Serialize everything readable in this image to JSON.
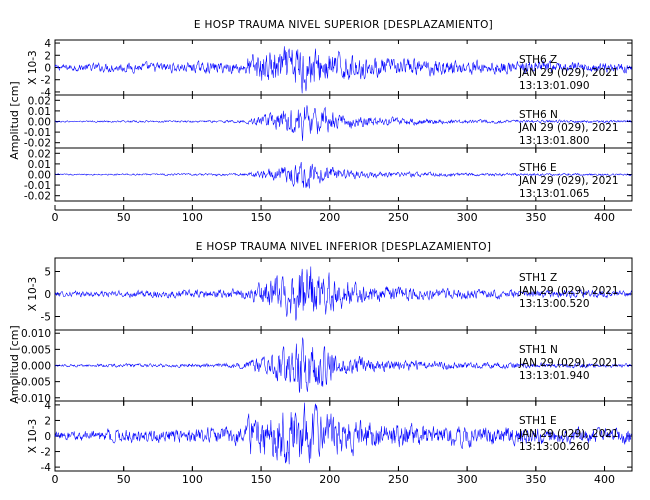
{
  "chart_data": [
    {
      "type": "line",
      "title": "E HOSP TRAUMA NIVEL SUPERIOR [DESPLAZAMIENTO]",
      "ylabel": "Amplitud [cm]",
      "xlim": [
        0,
        420
      ],
      "xticks": [
        0,
        50,
        100,
        150,
        200,
        250,
        300,
        350,
        400
      ],
      "line_color": "#0000ff",
      "traces": [
        {
          "ylim": [
            -4.5,
            4.5
          ],
          "yticks": [
            -4,
            -2,
            0,
            2,
            4
          ],
          "ytick_labels": [
            "-4",
            "-2",
            "0",
            "2",
            "4"
          ],
          "scale_label": "X 10-3",
          "station": "STH6   Z",
          "date": "JAN 29 (029), 2021",
          "time": "13:13:01.090",
          "envelope": {
            "x": [
              0,
              40,
              100,
              138,
              140,
              160,
              175,
              180,
              185,
              200,
              230,
              300,
              380,
              420
            ],
            "y": [
              0.5,
              0.8,
              0.9,
              1.0,
              2.2,
              3.0,
              3.8,
              4.4,
              3.6,
              2.6,
              1.6,
              1.2,
              0.9,
              0.8
            ]
          }
        },
        {
          "ylim": [
            -0.025,
            0.025
          ],
          "yticks": [
            -0.02,
            -0.01,
            0.0,
            0.01,
            0.02
          ],
          "ytick_labels": [
            "-0.02",
            "-0.01",
            "0.00",
            "0.01",
            "0.02"
          ],
          "scale_label": "",
          "station": "STH6   N",
          "date": "JAN 29 (029), 2021",
          "time": "13:13:01.800",
          "envelope": {
            "x": [
              0,
              100,
              138,
              150,
              170,
              180,
              190,
              210,
              240,
              300,
              420
            ],
            "y": [
              0.0008,
              0.001,
              0.0015,
              0.005,
              0.012,
              0.018,
              0.013,
              0.007,
              0.004,
              0.0018,
              0.0012
            ]
          }
        },
        {
          "ylim": [
            -0.025,
            0.025
          ],
          "yticks": [
            -0.02,
            -0.01,
            0.0,
            0.01,
            0.02
          ],
          "ytick_labels": [
            "-0.02",
            "-0.01",
            "0.00",
            "0.01",
            "0.02"
          ],
          "scale_label": "",
          "station": "STH6   E",
          "date": "JAN 29 (029), 2021",
          "time": "13:13:01.065",
          "envelope": {
            "x": [
              0,
              100,
              138,
              150,
              170,
              180,
              190,
              210,
              240,
              300,
              420
            ],
            "y": [
              0.0007,
              0.001,
              0.0014,
              0.004,
              0.009,
              0.015,
              0.01,
              0.005,
              0.003,
              0.0015,
              0.001
            ]
          }
        }
      ]
    },
    {
      "type": "line",
      "title": "E HOSP TRAUMA NIVEL INFERIOR [DESPLAZAMIENTO]",
      "ylabel": "Amplitud [cm]",
      "xlim": [
        0,
        420
      ],
      "xticks": [
        0,
        50,
        100,
        150,
        200,
        250,
        300,
        350,
        400
      ],
      "line_color": "#0000ff",
      "traces": [
        {
          "ylim": [
            -8,
            8
          ],
          "yticks": [
            -5,
            0,
            5
          ],
          "ytick_labels": [
            "-5",
            "0",
            "5"
          ],
          "scale_label": "X 10-3",
          "station": "STH1   Z",
          "date": "JAN 29 (029), 2021",
          "time": "13:13:00.520",
          "envelope": {
            "x": [
              0,
              100,
              138,
              150,
              170,
              180,
              190,
              210,
              240,
              300,
              420
            ],
            "y": [
              0.6,
              0.9,
              1.2,
              2.5,
              5.0,
              7.5,
              5.5,
              3.0,
              1.8,
              1.1,
              0.8
            ]
          }
        },
        {
          "ylim": [
            -0.011,
            0.011
          ],
          "yticks": [
            -0.01,
            -0.005,
            0.0,
            0.005,
            0.01
          ],
          "ytick_labels": [
            "-0.010",
            "-0.005",
            "0.000",
            "0.005",
            "0.010"
          ],
          "scale_label": "",
          "station": "STH1   N",
          "date": "JAN 29 (029), 2021",
          "time": "13:13:01.940",
          "envelope": {
            "x": [
              0,
              100,
              138,
              150,
              170,
              180,
              190,
              210,
              240,
              300,
              420
            ],
            "y": [
              0.0004,
              0.0006,
              0.001,
              0.003,
              0.006,
              0.0095,
              0.007,
              0.0035,
              0.002,
              0.001,
              0.0006
            ]
          }
        },
        {
          "ylim": [
            -4.5,
            4.5
          ],
          "yticks": [
            -4,
            -2,
            0,
            2,
            4
          ],
          "ytick_labels": [
            "-4",
            "-2",
            "0",
            "2",
            "4"
          ],
          "scale_label": "X 10-3",
          "station": "STH1   E",
          "date": "JAN 29 (029), 2021",
          "time": "13:13:00.260",
          "envelope": {
            "x": [
              0,
              40,
              100,
              138,
              140,
              160,
              175,
              180,
              190,
              210,
              240,
              300,
              420
            ],
            "y": [
              0.6,
              0.9,
              1.0,
              1.2,
              2.6,
              3.2,
              3.8,
              4.2,
              3.4,
              2.4,
              1.8,
              1.3,
              1.0
            ]
          }
        }
      ]
    }
  ]
}
